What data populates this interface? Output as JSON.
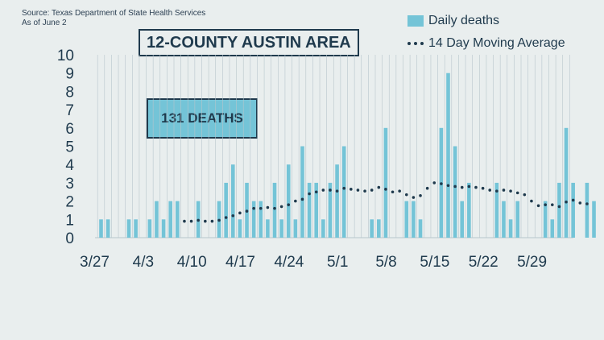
{
  "source": {
    "line1": "Source: Texas Department of State Health Services",
    "line2": "As of June 2"
  },
  "annotations": {
    "total_deaths": "131 DEATHS"
  },
  "colors": {
    "bar": "#74c4d7",
    "line": "#1f3a4d",
    "text": "#1f3a4d",
    "grid": "#b8c6cc",
    "background": "#e9eeee"
  },
  "chart_data": {
    "type": "bar",
    "title": "12-COUNTY AUSTIN AREA",
    "ylim": [
      0,
      10
    ],
    "yticks": [
      "0",
      "1",
      "2",
      "3",
      "4",
      "5",
      "6",
      "7",
      "8",
      "9",
      "10"
    ],
    "grid": "vertical",
    "legend_position": "top-right",
    "xtick_labels": [
      {
        "label": "3/27",
        "day": 0
      },
      {
        "label": "4/3",
        "day": 7
      },
      {
        "label": "4/10",
        "day": 14
      },
      {
        "label": "4/17",
        "day": 21
      },
      {
        "label": "4/24",
        "day": 28
      },
      {
        "label": "5/1",
        "day": 35
      },
      {
        "label": "5/8",
        "day": 42
      },
      {
        "label": "5/15",
        "day": 49
      },
      {
        "label": "5/22",
        "day": 56
      },
      {
        "label": "5/29",
        "day": 63
      }
    ],
    "series": [
      {
        "name": "Daily deaths",
        "type": "bar",
        "values": [
          1,
          1,
          0,
          0,
          1,
          1,
          0,
          1,
          2,
          1,
          2,
          2,
          0,
          0,
          2,
          0,
          0,
          2,
          3,
          4,
          1,
          3,
          2,
          2,
          1,
          3,
          1,
          4,
          1,
          5,
          3,
          3,
          1,
          3,
          4,
          5,
          0,
          0,
          0,
          1,
          1,
          6,
          0,
          0,
          2,
          2,
          1,
          0,
          0,
          6,
          9,
          5,
          2,
          3,
          0,
          0,
          0,
          3,
          2,
          1,
          2,
          0,
          0,
          0,
          2,
          1,
          3,
          6,
          3,
          0,
          3,
          2
        ]
      },
      {
        "name": "14 Day Moving Average",
        "type": "line",
        "start_day": 12,
        "values": [
          0.9,
          0.9,
          0.95,
          0.9,
          0.9,
          0.95,
          1.1,
          1.2,
          1.35,
          1.45,
          1.6,
          1.6,
          1.65,
          1.6,
          1.7,
          1.8,
          2.0,
          2.1,
          2.4,
          2.5,
          2.6,
          2.6,
          2.55,
          2.7,
          2.65,
          2.6,
          2.55,
          2.6,
          2.75,
          2.65,
          2.5,
          2.55,
          2.35,
          2.2,
          2.3,
          2.7,
          3.0,
          2.95,
          2.85,
          2.8,
          2.75,
          2.8,
          2.75,
          2.7,
          2.6,
          2.55,
          2.6,
          2.55,
          2.45,
          2.35,
          2.0,
          1.75,
          1.8,
          1.8,
          1.7,
          1.95,
          2.05,
          1.9,
          1.85
        ]
      }
    ]
  }
}
